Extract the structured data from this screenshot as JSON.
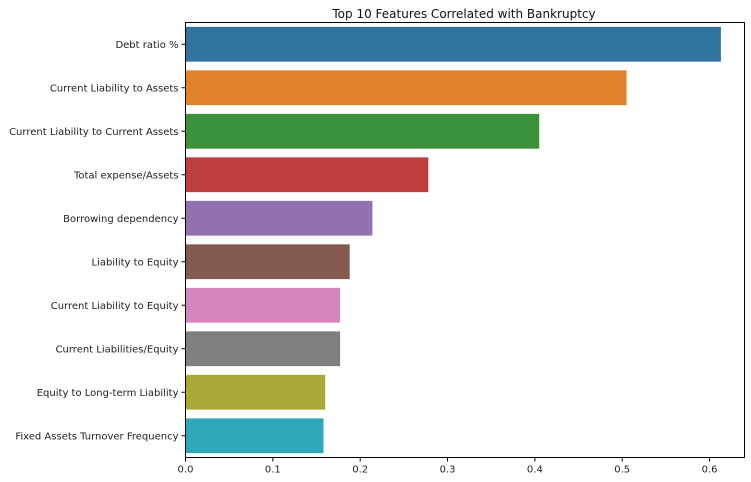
{
  "chart_data": {
    "type": "bar",
    "orientation": "horizontal",
    "title": "Top 10 Features Correlated with Bankruptcy",
    "xlabel": "",
    "ylabel": "",
    "categories": [
      "Debt ratio %",
      "Current Liability to Assets",
      "Current Liability to Current Assets",
      "Total expense/Assets",
      "Borrowing dependency",
      "Liability to Equity",
      "Current Liability to Equity",
      "Current Liabilities/Equity",
      "Equity to Long-term Liability",
      "Fixed Assets Turnover Frequency"
    ],
    "values": [
      0.613,
      0.505,
      0.405,
      0.278,
      0.214,
      0.188,
      0.177,
      0.177,
      0.16,
      0.158
    ],
    "colors": [
      "#3274a1",
      "#e1812c",
      "#3a923a",
      "#c03d3e",
      "#9372b2",
      "#845b53",
      "#d684bd",
      "#7f7f7f",
      "#a9aa35",
      "#2ea8b8"
    ],
    "xlim": [
      0,
      0.64
    ],
    "xticks": [
      0.0,
      0.1,
      0.2,
      0.3,
      0.4,
      0.5,
      0.6
    ],
    "xtick_labels": [
      "0.0",
      "0.1",
      "0.2",
      "0.3",
      "0.4",
      "0.5",
      "0.6"
    ],
    "grid": false,
    "legend": "none"
  }
}
